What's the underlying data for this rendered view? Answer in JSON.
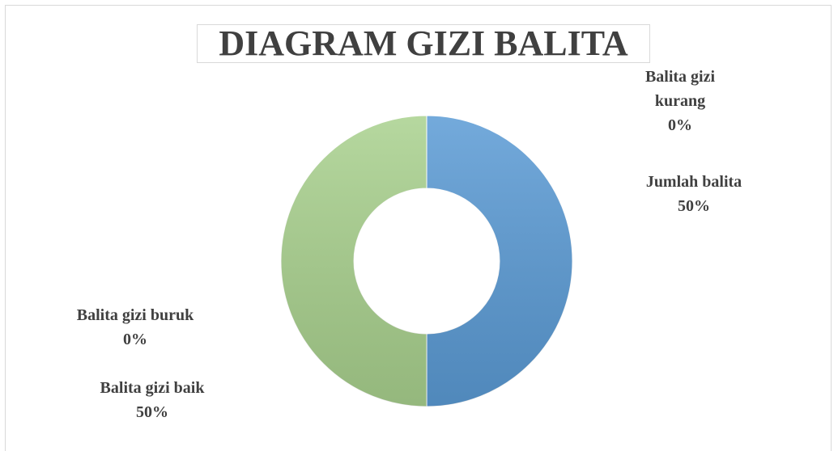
{
  "chart_data": {
    "type": "donut",
    "title": "DIAGRAM GIZI BALITA",
    "categories": [
      "Balita gizi kurang",
      "Jumlah balita",
      "Balita gizi buruk",
      "Balita gizi baik"
    ],
    "values": [
      0,
      50,
      0,
      50
    ],
    "value_labels": [
      "0%",
      "50%",
      "0%",
      "50%"
    ],
    "colors": [
      "#ed7d31",
      "#5b9bd5",
      "#a5a5a5",
      "#a9d18e"
    ]
  }
}
